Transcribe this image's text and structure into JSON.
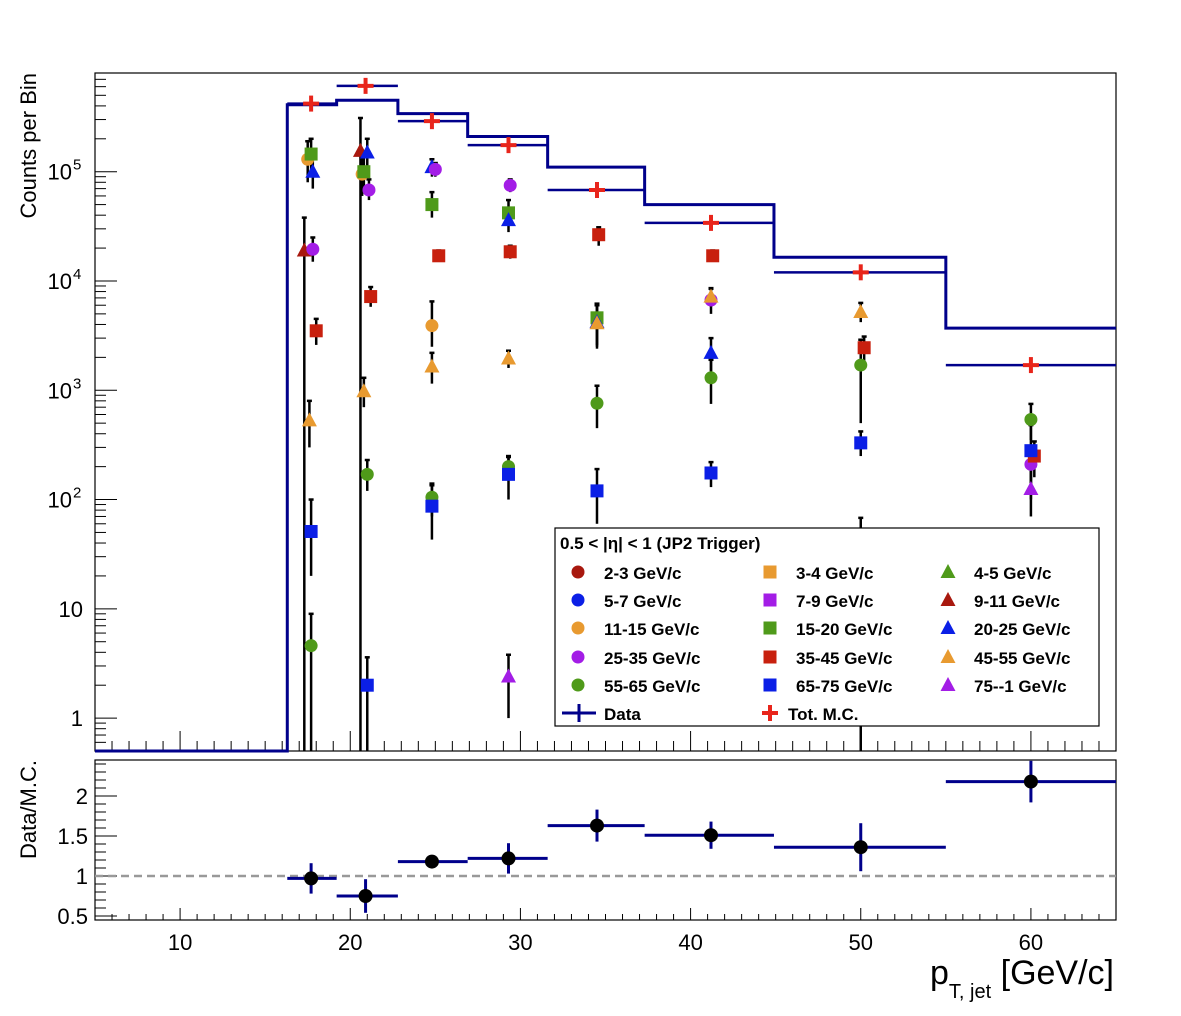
{
  "chart_data": {
    "type": "scatter",
    "upper": {
      "ylabel": "Counts per Bin",
      "yscale": "log",
      "ylim": [
        0.5,
        800000
      ],
      "ytick_labels": [
        {
          "v": 1,
          "t": "1"
        },
        {
          "v": 10,
          "t": "10"
        },
        {
          "v": 100,
          "t": "10",
          "sup": "2"
        },
        {
          "v": 1000,
          "t": "10",
          "sup": "3"
        },
        {
          "v": 10000,
          "t": "10",
          "sup": "4"
        },
        {
          "v": 100000,
          "t": "10",
          "sup": "5"
        }
      ],
      "legend_title": "0.5 < |η| < 1 (JP2 Trigger)",
      "legend_position": "bottom-right"
    },
    "lower": {
      "ylabel": "Data/M.C.",
      "ylim": [
        0.45,
        2.45
      ],
      "yticks": [
        0.5,
        1,
        1.5,
        2
      ],
      "ytick_labels": [
        "0.5",
        "1",
        "1.5",
        "2"
      ],
      "reference_line": 1
    },
    "x": {
      "label_main": "p",
      "label_sub": "T, jet",
      "label_unit": " [GeV/c]",
      "lim": [
        5,
        65
      ],
      "ticks": [
        10,
        20,
        30,
        40,
        50,
        60
      ],
      "tick_labels": [
        "10",
        "20",
        "30",
        "40",
        "50",
        "60"
      ]
    },
    "data_hist": {
      "name": "Data",
      "color": "#00008b",
      "edges": [
        5,
        16.3,
        19.2,
        22.8,
        26.9,
        31.6,
        37.3,
        44.9,
        55,
        65
      ],
      "values": [
        0.5,
        410000,
        450000,
        340000,
        210000,
        110000,
        50000,
        16500,
        3700
      ]
    },
    "mc_total": {
      "name": "Tot. M.C.",
      "color": "#e8251b",
      "points": [
        {
          "x": 17.7,
          "y": 420000,
          "xlo": 16.3,
          "xhi": 19.2
        },
        {
          "x": 20.9,
          "y": 610000,
          "xlo": 19.2,
          "xhi": 22.8
        },
        {
          "x": 24.8,
          "y": 290000,
          "xlo": 22.8,
          "xhi": 26.9
        },
        {
          "x": 29.3,
          "y": 175000,
          "xlo": 26.9,
          "xhi": 31.6
        },
        {
          "x": 34.5,
          "y": 68000,
          "xlo": 31.6,
          "xhi": 37.3
        },
        {
          "x": 41.2,
          "y": 34000,
          "xlo": 37.3,
          "xhi": 44.9
        },
        {
          "x": 50.0,
          "y": 12000,
          "xlo": 44.9,
          "xhi": 55
        },
        {
          "x": 60.0,
          "y": 1700,
          "xlo": 55,
          "xhi": 65
        }
      ]
    },
    "series": [
      {
        "name": "2-3 GeV/c",
        "color": "#a8180e",
        "marker": "circle",
        "points": []
      },
      {
        "name": "3-4 GeV/c",
        "color": "#e89a30",
        "marker": "square",
        "points": []
      },
      {
        "name": "4-5 GeV/c",
        "color": "#4f9a1a",
        "marker": "triangle",
        "points": []
      },
      {
        "name": "5-7 GeV/c",
        "color": "#0b1fe6",
        "marker": "circle",
        "points": []
      },
      {
        "name": "7-9 GeV/c",
        "color": "#a31de6",
        "marker": "square",
        "points": []
      },
      {
        "name": "9-11 GeV/c",
        "color": "#a8180e",
        "marker": "triangle",
        "points": [
          {
            "x": 17.3,
            "y": 19000,
            "lo": 0.5,
            "hi": 38000
          },
          {
            "x": 20.6,
            "y": 155000,
            "lo": 0.5,
            "hi": 310000
          }
        ]
      },
      {
        "name": "11-15 GeV/c",
        "color": "#e89a30",
        "marker": "circle",
        "points": [
          {
            "x": 17.5,
            "y": 130000,
            "lo": 80000,
            "hi": 190000
          },
          {
            "x": 20.7,
            "y": 95000,
            "lo": 60000,
            "hi": 130000
          },
          {
            "x": 24.8,
            "y": 3900,
            "lo": 2500,
            "hi": 6500
          }
        ]
      },
      {
        "name": "15-20 GeV/c",
        "color": "#4f9a1a",
        "marker": "square",
        "points": [
          {
            "x": 17.7,
            "y": 145000,
            "lo": 100000,
            "hi": 200000
          },
          {
            "x": 20.8,
            "y": 100000,
            "lo": 70000,
            "hi": 140000
          },
          {
            "x": 24.8,
            "y": 50000,
            "lo": 38000,
            "hi": 65000
          },
          {
            "x": 29.3,
            "y": 42000,
            "lo": 32000,
            "hi": 55000
          },
          {
            "x": 34.5,
            "y": 4600,
            "lo": 2400,
            "hi": 6200
          }
        ]
      },
      {
        "name": "20-25 GeV/c",
        "color": "#0b1fe6",
        "marker": "triangle",
        "points": [
          {
            "x": 17.8,
            "y": 100000,
            "lo": 70000,
            "hi": 140000
          },
          {
            "x": 21.0,
            "y": 150000,
            "lo": 110000,
            "hi": 200000
          },
          {
            "x": 24.8,
            "y": 110000,
            "lo": 90000,
            "hi": 130000
          },
          {
            "x": 29.3,
            "y": 36000,
            "lo": 28000,
            "hi": 45000
          },
          {
            "x": 34.5,
            "y": 4200,
            "lo": 2500,
            "hi": 6000
          },
          {
            "x": 41.2,
            "y": 2200,
            "lo": 1500,
            "hi": 3000
          },
          {
            "x": 50.0,
            "y": 0.95,
            "lo": 0.5,
            "hi": 1.3
          }
        ]
      },
      {
        "name": "25-35 GeV/c",
        "color": "#a31de6",
        "marker": "circle",
        "points": [
          {
            "x": 17.8,
            "y": 19500,
            "lo": 15000,
            "hi": 25000
          },
          {
            "x": 21.1,
            "y": 68000,
            "lo": 55000,
            "hi": 85000
          },
          {
            "x": 25.0,
            "y": 105000,
            "lo": 90000,
            "hi": 120000
          },
          {
            "x": 29.4,
            "y": 75000,
            "lo": 65000,
            "hi": 85000
          },
          {
            "x": 41.2,
            "y": 6700,
            "lo": 5000,
            "hi": 8500
          },
          {
            "x": 60.0,
            "y": 210,
            "lo": 120,
            "hi": 300
          }
        ]
      },
      {
        "name": "35-45 GeV/c",
        "color": "#c8200e",
        "marker": "square",
        "points": [
          {
            "x": 18.0,
            "y": 3500,
            "lo": 2600,
            "hi": 4500
          },
          {
            "x": 21.2,
            "y": 7200,
            "lo": 5800,
            "hi": 8800
          },
          {
            "x": 25.2,
            "y": 17000,
            "lo": 15000,
            "hi": 19000
          },
          {
            "x": 29.4,
            "y": 18500,
            "lo": 16000,
            "hi": 21000
          },
          {
            "x": 34.6,
            "y": 26500,
            "lo": 21000,
            "hi": 31000
          },
          {
            "x": 41.3,
            "y": 17000,
            "lo": 15000,
            "hi": 19000
          },
          {
            "x": 50.2,
            "y": 2450,
            "lo": 1800,
            "hi": 3100
          },
          {
            "x": 60.2,
            "y": 250,
            "lo": 160,
            "hi": 340
          }
        ]
      },
      {
        "name": "45-55 GeV/c",
        "color": "#e89a30",
        "marker": "triangle",
        "points": [
          {
            "x": 17.6,
            "y": 530,
            "lo": 300,
            "hi": 800
          },
          {
            "x": 20.8,
            "y": 980,
            "lo": 700,
            "hi": 1300
          },
          {
            "x": 24.8,
            "y": 1650,
            "lo": 1150,
            "hi": 2200
          },
          {
            "x": 29.3,
            "y": 1950,
            "lo": 1600,
            "hi": 2300
          },
          {
            "x": 34.5,
            "y": 4100,
            "lo": 2600,
            "hi": 6000
          },
          {
            "x": 41.2,
            "y": 7200,
            "lo": 5800,
            "hi": 8600
          },
          {
            "x": 50.0,
            "y": 5200,
            "lo": 4200,
            "hi": 6300
          }
        ]
      },
      {
        "name": "55-65 GeV/c",
        "color": "#4f9a1a",
        "marker": "circle",
        "points": [
          {
            "x": 17.7,
            "y": 4.6,
            "lo": 0.5,
            "hi": 9
          },
          {
            "x": 21.0,
            "y": 170,
            "lo": 120,
            "hi": 230
          },
          {
            "x": 24.8,
            "y": 105,
            "lo": 70,
            "hi": 140
          },
          {
            "x": 29.3,
            "y": 200,
            "lo": 150,
            "hi": 250
          },
          {
            "x": 34.5,
            "y": 760,
            "lo": 450,
            "hi": 1100
          },
          {
            "x": 41.2,
            "y": 1300,
            "lo": 750,
            "hi": 1900
          },
          {
            "x": 50.0,
            "y": 1700,
            "lo": 500,
            "hi": 2900
          },
          {
            "x": 60.0,
            "y": 540,
            "lo": 350,
            "hi": 750
          }
        ]
      },
      {
        "name": "65-75 GeV/c",
        "color": "#0b1fe6",
        "marker": "square",
        "points": [
          {
            "x": 17.7,
            "y": 51,
            "lo": 20,
            "hi": 100
          },
          {
            "x": 21.0,
            "y": 2.0,
            "lo": 0.5,
            "hi": 3.6
          },
          {
            "x": 24.8,
            "y": 87,
            "lo": 43,
            "hi": 135
          },
          {
            "x": 29.3,
            "y": 170,
            "lo": 100,
            "hi": 245
          },
          {
            "x": 34.5,
            "y": 120,
            "lo": 60,
            "hi": 190
          },
          {
            "x": 41.2,
            "y": 175,
            "lo": 130,
            "hi": 220
          },
          {
            "x": 50.0,
            "y": 330,
            "lo": 250,
            "hi": 420
          },
          {
            "x": 60.0,
            "y": 280,
            "lo": 100,
            "hi": 480
          }
        ]
      },
      {
        "name": "75--1 GeV/c",
        "color": "#a31de6",
        "marker": "triangle",
        "points": [
          {
            "x": 29.3,
            "y": 2.4,
            "lo": 1.0,
            "hi": 3.8
          },
          {
            "x": 34.5,
            "y": 26,
            "lo": 12,
            "hi": 40
          },
          {
            "x": 41.2,
            "y": 26,
            "lo": 20,
            "hi": 33
          },
          {
            "x": 50.0,
            "y": 46,
            "lo": 25,
            "hi": 68
          },
          {
            "x": 60.0,
            "y": 125,
            "lo": 70,
            "hi": 190
          }
        ]
      }
    ],
    "ratio": {
      "color": "#00008b",
      "points": [
        {
          "x": 17.7,
          "y": 0.97,
          "xlo": 16.3,
          "xhi": 19.2,
          "ylo": 0.78,
          "yhi": 1.16
        },
        {
          "x": 20.9,
          "y": 0.75,
          "xlo": 19.2,
          "xhi": 22.8,
          "ylo": 0.54,
          "yhi": 0.96
        },
        {
          "x": 24.8,
          "y": 1.18,
          "xlo": 22.8,
          "xhi": 26.9,
          "ylo": 1.1,
          "yhi": 1.26
        },
        {
          "x": 29.3,
          "y": 1.22,
          "xlo": 26.9,
          "xhi": 31.6,
          "ylo": 1.03,
          "yhi": 1.41
        },
        {
          "x": 34.5,
          "y": 1.63,
          "xlo": 31.6,
          "xhi": 37.3,
          "ylo": 1.43,
          "yhi": 1.83
        },
        {
          "x": 41.2,
          "y": 1.51,
          "xlo": 37.3,
          "xhi": 44.9,
          "ylo": 1.34,
          "yhi": 1.68
        },
        {
          "x": 50.0,
          "y": 1.36,
          "xlo": 44.9,
          "xhi": 55,
          "ylo": 1.06,
          "yhi": 1.66
        },
        {
          "x": 60.0,
          "y": 2.18,
          "xlo": 55,
          "xhi": 65,
          "ylo": 1.92,
          "yhi": 2.44
        }
      ]
    }
  }
}
